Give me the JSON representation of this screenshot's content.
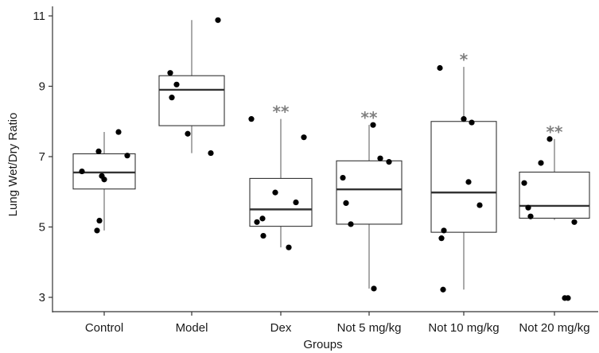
{
  "chart_data": {
    "type": "box",
    "xlabel": "Groups",
    "ylabel": "Lung Wet/Dry Ratio",
    "ylim": [
      2.6,
      11.3
    ],
    "yticks": [
      3,
      5,
      7,
      9,
      11
    ],
    "grid": false,
    "colors": {
      "box_fill": "#ffffff",
      "box_stroke": "#333333",
      "points": "#000000",
      "significance": "#808080"
    },
    "groups": [
      {
        "label": "Control",
        "whisker_low": 4.9,
        "q1": 6.08,
        "median": 6.55,
        "q3": 7.08,
        "whisker_high": 7.7,
        "significance": "",
        "points": [
          6.58,
          6.45,
          6.35,
          7.15,
          7.7,
          7.03,
          5.18,
          4.9
        ]
      },
      {
        "label": "Model",
        "whisker_low": 7.1,
        "q1": 7.88,
        "median": 8.9,
        "q3": 9.3,
        "whisker_high": 10.88,
        "significance": "",
        "points": [
          8.68,
          9.38,
          9.05,
          7.65,
          7.1,
          10.88
        ]
      },
      {
        "label": "Dex",
        "whisker_low": 4.42,
        "q1": 5.02,
        "median": 5.5,
        "q3": 6.38,
        "whisker_high": 8.07,
        "significance": "**",
        "points": [
          8.07,
          5.14,
          4.75,
          5.24,
          5.98,
          5.7,
          7.55,
          4.42
        ]
      },
      {
        "label": "Not 5 mg/kg",
        "whisker_low": 3.25,
        "q1": 5.08,
        "median": 6.07,
        "q3": 6.88,
        "whisker_high": 7.9,
        "significance": "**",
        "points": [
          6.4,
          5.68,
          5.08,
          7.9,
          6.95,
          6.85,
          3.25
        ]
      },
      {
        "label": "Not 10 mg/kg",
        "whisker_low": 3.22,
        "q1": 4.85,
        "median": 5.98,
        "q3": 8.0,
        "whisker_high": 9.55,
        "significance": "*",
        "points": [
          9.52,
          3.22,
          4.9,
          4.68,
          8.07,
          6.28,
          7.97,
          5.62
        ]
      },
      {
        "label": "Not 20 mg/kg",
        "whisker_low": 5.2,
        "q1": 5.25,
        "median": 5.6,
        "q3": 6.56,
        "whisker_high": 7.5,
        "significance": "**",
        "points": [
          6.25,
          5.55,
          5.3,
          6.82,
          7.5,
          2.98,
          2.98,
          5.14
        ]
      }
    ]
  }
}
